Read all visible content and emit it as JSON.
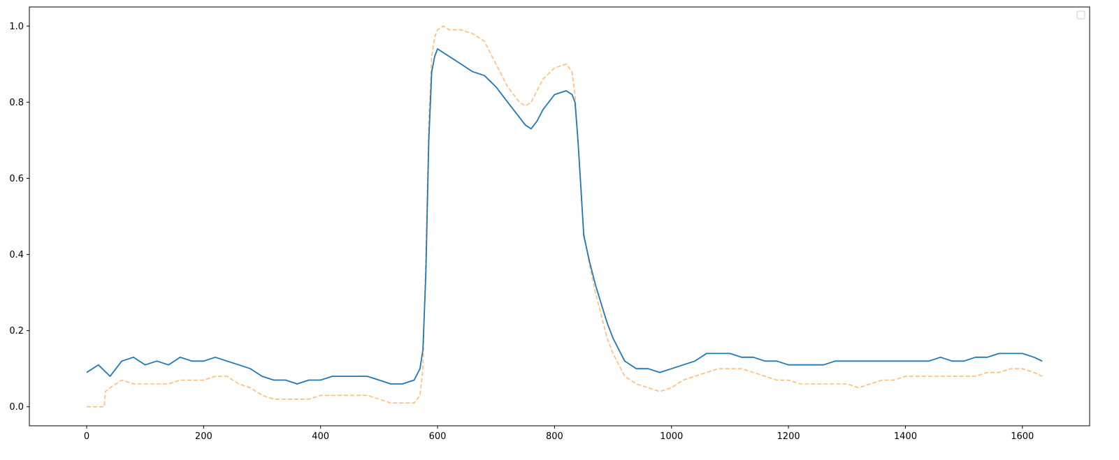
{
  "chart_data": {
    "type": "line",
    "title": "",
    "xlabel": "",
    "ylabel": "",
    "xlim": [
      -98,
      1715
    ],
    "ylim": [
      -0.05,
      1.05
    ],
    "x_ticks": [
      0,
      200,
      400,
      600,
      800,
      1000,
      1200,
      1400,
      1600
    ],
    "y_ticks": [
      0.0,
      0.2,
      0.4,
      0.6,
      0.8,
      1.0
    ],
    "x_tick_labels": [
      "0",
      "200",
      "400",
      "600",
      "800",
      "1000",
      "1200",
      "1400",
      "1600"
    ],
    "y_tick_labels": [
      "0.0",
      "0.2",
      "0.4",
      "0.6",
      "0.8",
      "1.0"
    ],
    "grid": false,
    "legend": {
      "position": "top-right",
      "entries": []
    },
    "series": [
      {
        "color": "#1f77b4",
        "style": "solid",
        "x": [
          0,
          20,
          40,
          60,
          80,
          100,
          120,
          140,
          160,
          180,
          200,
          220,
          240,
          260,
          280,
          300,
          320,
          340,
          360,
          380,
          400,
          420,
          440,
          460,
          480,
          500,
          520,
          540,
          560,
          570,
          575,
          580,
          585,
          590,
          595,
          600,
          610,
          620,
          640,
          660,
          680,
          700,
          720,
          740,
          750,
          760,
          770,
          780,
          800,
          820,
          830,
          835,
          840,
          845,
          850,
          860,
          870,
          880,
          890,
          900,
          910,
          920,
          940,
          960,
          980,
          1000,
          1020,
          1040,
          1060,
          1080,
          1100,
          1120,
          1140,
          1160,
          1180,
          1200,
          1220,
          1240,
          1260,
          1280,
          1300,
          1320,
          1340,
          1360,
          1380,
          1400,
          1420,
          1440,
          1460,
          1480,
          1500,
          1520,
          1540,
          1560,
          1580,
          1600,
          1620,
          1634
        ],
        "y": [
          0.09,
          0.11,
          0.08,
          0.12,
          0.13,
          0.11,
          0.12,
          0.11,
          0.13,
          0.12,
          0.12,
          0.13,
          0.12,
          0.11,
          0.1,
          0.08,
          0.07,
          0.07,
          0.06,
          0.07,
          0.07,
          0.08,
          0.08,
          0.08,
          0.08,
          0.07,
          0.06,
          0.06,
          0.07,
          0.1,
          0.15,
          0.35,
          0.7,
          0.88,
          0.92,
          0.94,
          0.93,
          0.92,
          0.9,
          0.88,
          0.87,
          0.84,
          0.8,
          0.76,
          0.74,
          0.73,
          0.75,
          0.78,
          0.82,
          0.83,
          0.82,
          0.8,
          0.7,
          0.58,
          0.45,
          0.38,
          0.32,
          0.27,
          0.22,
          0.18,
          0.15,
          0.12,
          0.1,
          0.1,
          0.09,
          0.1,
          0.11,
          0.12,
          0.14,
          0.14,
          0.14,
          0.13,
          0.13,
          0.12,
          0.12,
          0.11,
          0.11,
          0.11,
          0.11,
          0.12,
          0.12,
          0.12,
          0.12,
          0.12,
          0.12,
          0.12,
          0.12,
          0.12,
          0.13,
          0.12,
          0.12,
          0.13,
          0.13,
          0.14,
          0.14,
          0.14,
          0.13,
          0.12
        ]
      },
      {
        "color": "#ffbb78",
        "style": "dashed",
        "x": [
          0,
          30,
          32,
          40,
          60,
          80,
          100,
          120,
          140,
          160,
          180,
          200,
          220,
          240,
          260,
          280,
          300,
          320,
          340,
          360,
          380,
          400,
          420,
          440,
          460,
          480,
          500,
          520,
          540,
          560,
          570,
          575,
          580,
          585,
          590,
          595,
          600,
          610,
          620,
          640,
          660,
          680,
          700,
          720,
          740,
          750,
          760,
          780,
          800,
          820,
          830,
          835,
          840,
          845,
          850,
          860,
          870,
          880,
          890,
          900,
          910,
          920,
          940,
          960,
          980,
          1000,
          1020,
          1040,
          1060,
          1080,
          1100,
          1120,
          1140,
          1160,
          1180,
          1200,
          1220,
          1240,
          1260,
          1280,
          1300,
          1320,
          1340,
          1360,
          1380,
          1400,
          1420,
          1440,
          1460,
          1480,
          1500,
          1520,
          1540,
          1560,
          1580,
          1600,
          1620,
          1634
        ],
        "y": [
          0.0,
          0.0,
          0.04,
          0.05,
          0.07,
          0.06,
          0.06,
          0.06,
          0.06,
          0.07,
          0.07,
          0.07,
          0.08,
          0.08,
          0.06,
          0.05,
          0.03,
          0.02,
          0.02,
          0.02,
          0.02,
          0.03,
          0.03,
          0.03,
          0.03,
          0.03,
          0.02,
          0.01,
          0.01,
          0.01,
          0.03,
          0.1,
          0.4,
          0.75,
          0.92,
          0.97,
          0.99,
          1.0,
          0.99,
          0.99,
          0.98,
          0.96,
          0.9,
          0.84,
          0.8,
          0.79,
          0.8,
          0.86,
          0.89,
          0.9,
          0.88,
          0.82,
          0.7,
          0.57,
          0.46,
          0.37,
          0.3,
          0.24,
          0.18,
          0.14,
          0.11,
          0.08,
          0.06,
          0.05,
          0.04,
          0.05,
          0.07,
          0.08,
          0.09,
          0.1,
          0.1,
          0.1,
          0.09,
          0.08,
          0.07,
          0.07,
          0.06,
          0.06,
          0.06,
          0.06,
          0.06,
          0.05,
          0.06,
          0.07,
          0.07,
          0.08,
          0.08,
          0.08,
          0.08,
          0.08,
          0.08,
          0.08,
          0.09,
          0.09,
          0.1,
          0.1,
          0.09,
          0.08
        ]
      }
    ]
  }
}
